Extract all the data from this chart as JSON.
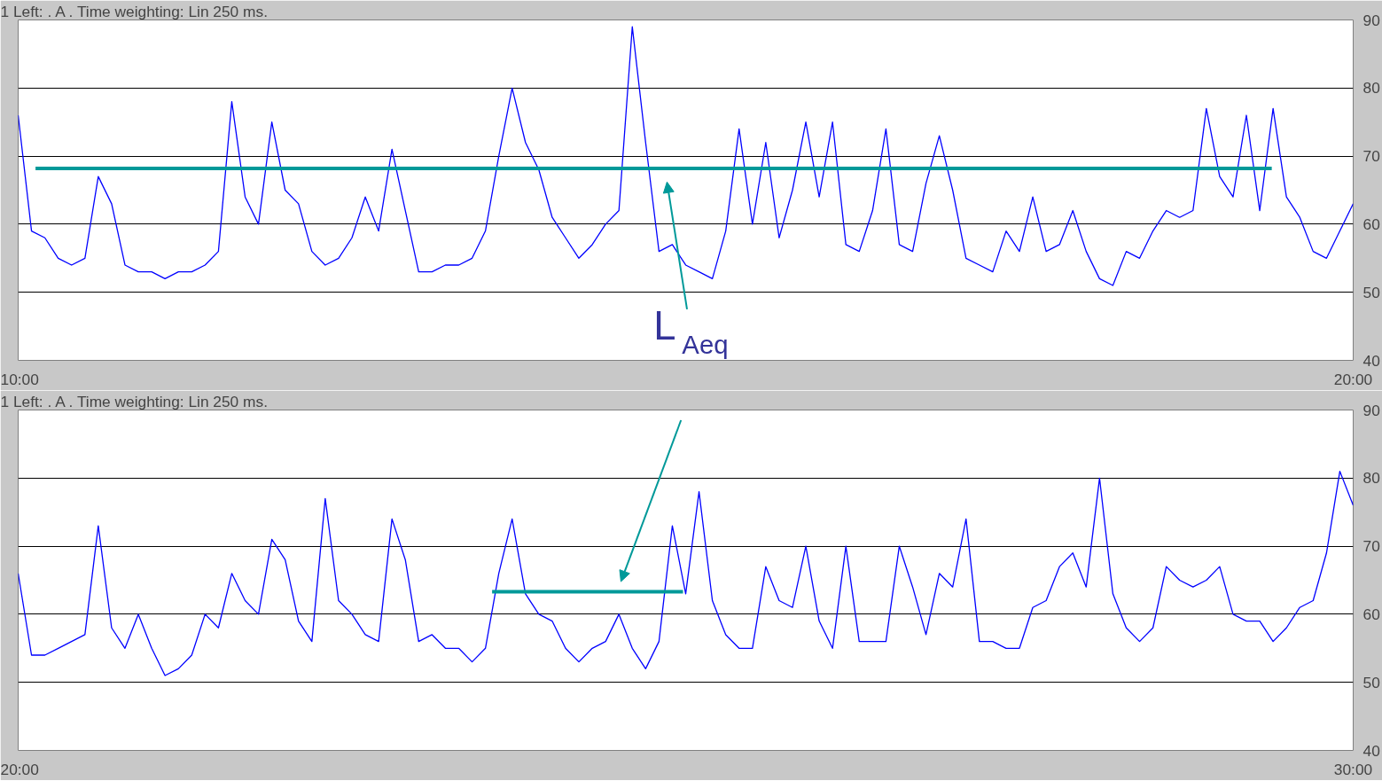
{
  "chart_data": [
    {
      "type": "line",
      "title": "1 Left: .   A .  Time weighting: Lin 250 ms.",
      "xlim": [
        10,
        20
      ],
      "ylim": [
        40,
        90
      ],
      "xticks": [
        {
          "value": 10,
          "label": "10:00"
        },
        {
          "value": 20,
          "label": "20:00"
        }
      ],
      "yticks": [
        40,
        50,
        60,
        70,
        80,
        90
      ],
      "grid": "y",
      "annotations": [
        "L$_{Aeq}$"
      ],
      "series": [
        {
          "color": "#0000ff",
          "x": [
            10,
            10.1,
            10.2,
            10.3,
            10.4,
            10.5,
            10.6,
            10.7,
            10.8,
            10.9,
            11,
            11.1,
            11.2,
            11.3,
            11.4,
            11.5,
            11.6,
            11.7,
            11.8,
            11.9,
            12,
            12.1,
            12.2,
            12.3,
            12.4,
            12.5,
            12.6,
            12.7,
            12.8,
            12.9,
            13,
            13.1,
            13.2,
            13.3,
            13.4,
            13.5,
            13.6,
            13.7,
            13.8,
            13.9,
            14,
            14.1,
            14.2,
            14.3,
            14.4,
            14.5,
            14.6,
            14.7,
            14.8,
            14.9,
            15,
            15.1,
            15.2,
            15.3,
            15.4,
            15.5,
            15.6,
            15.7,
            15.8,
            15.9,
            16,
            16.1,
            16.2,
            16.3,
            16.4,
            16.5,
            16.6,
            16.7,
            16.8,
            16.9,
            17,
            17.1,
            17.2,
            17.3,
            17.4,
            17.5,
            17.6,
            17.7,
            17.8,
            17.9,
            18,
            18.1,
            18.2,
            18.3,
            18.4,
            18.5,
            18.6,
            18.7,
            18.8,
            18.9,
            19,
            19.1,
            19.2,
            19.3,
            19.4,
            19.5,
            19.6,
            19.7,
            19.8,
            19.9,
            20
          ],
          "values": [
            76,
            59,
            58,
            55,
            54,
            55,
            67,
            63,
            54,
            53,
            53,
            52,
            53,
            53,
            54,
            56,
            78,
            64,
            60,
            75,
            65,
            63,
            56,
            54,
            55,
            58,
            64,
            59,
            71,
            62,
            53,
            53,
            54,
            54,
            55,
            59,
            70,
            80,
            72,
            68,
            61,
            58,
            55,
            57,
            60,
            62,
            89,
            72,
            56,
            57,
            54,
            53,
            52,
            59,
            74,
            60,
            72,
            58,
            65,
            75,
            64,
            75,
            57,
            56,
            62,
            74,
            57,
            56,
            66,
            73,
            65,
            55,
            54,
            53,
            59,
            56,
            64,
            56,
            57,
            62,
            56,
            52,
            51,
            56,
            55,
            59,
            62,
            61,
            62,
            77,
            67,
            64,
            76,
            62,
            77,
            64,
            61,
            56,
            55,
            59,
            63
          ]
        },
        {
          "color": "#009999",
          "x": [
            10.13,
            19.39
          ],
          "values": [
            68.2,
            68.2
          ]
        }
      ]
    },
    {
      "type": "line",
      "title": "1 Left: .   A .  Time weighting: Lin 250 ms.",
      "xlim": [
        20,
        30
      ],
      "ylim": [
        40,
        90
      ],
      "xticks": [
        {
          "value": 20,
          "label": "20:00"
        },
        {
          "value": 30,
          "label": "30:00"
        }
      ],
      "yticks": [
        40,
        50,
        60,
        70,
        80,
        90
      ],
      "grid": "y",
      "series": [
        {
          "color": "#0000ff",
          "x": [
            20,
            20.1,
            20.2,
            20.3,
            20.4,
            20.5,
            20.6,
            20.7,
            20.8,
            20.9,
            21,
            21.1,
            21.2,
            21.3,
            21.4,
            21.5,
            21.6,
            21.7,
            21.8,
            21.9,
            22,
            22.1,
            22.2,
            22.3,
            22.4,
            22.5,
            22.6,
            22.7,
            22.8,
            22.9,
            23,
            23.1,
            23.2,
            23.3,
            23.4,
            23.5,
            23.6,
            23.7,
            23.8,
            23.9,
            24,
            24.1,
            24.2,
            24.3,
            24.4,
            24.5,
            24.6,
            24.7,
            24.8,
            24.9,
            25,
            25.1,
            25.2,
            25.3,
            25.4,
            25.5,
            25.6,
            25.7,
            25.8,
            25.9,
            26,
            26.1,
            26.2,
            26.3,
            26.4,
            26.5,
            26.6,
            26.7,
            26.8,
            26.9,
            27,
            27.1,
            27.2,
            27.3,
            27.4,
            27.5,
            27.6,
            27.7,
            27.8,
            27.9,
            28,
            28.1,
            28.2,
            28.3,
            28.4,
            28.5,
            28.6,
            28.7,
            28.8,
            28.9,
            29,
            29.1,
            29.2,
            29.3,
            29.4,
            29.5,
            29.6,
            29.7,
            29.8,
            29.9,
            30
          ],
          "values": [
            66,
            54,
            54,
            55,
            56,
            57,
            73,
            58,
            55,
            60,
            55,
            51,
            52,
            54,
            60,
            58,
            66,
            62,
            60,
            71,
            68,
            59,
            56,
            77,
            62,
            60,
            57,
            56,
            74,
            68,
            56,
            57,
            55,
            55,
            53,
            55,
            66,
            74,
            63,
            60,
            59,
            55,
            53,
            55,
            56,
            60,
            55,
            52,
            56,
            73,
            63,
            78,
            62,
            57,
            55,
            55,
            67,
            62,
            61,
            70,
            59,
            55,
            70,
            56,
            56,
            56,
            70,
            64,
            57,
            66,
            64,
            74,
            56,
            56,
            55,
            55,
            61,
            62,
            67,
            69,
            64,
            80,
            63,
            58,
            56,
            58,
            67,
            65,
            64,
            65,
            67,
            60,
            59,
            59,
            56,
            58,
            61,
            62,
            69,
            81,
            76
          ]
        },
        {
          "color": "#009999",
          "x": [
            23.55,
            24.98
          ],
          "values": [
            63.3,
            63.3
          ]
        }
      ]
    }
  ]
}
